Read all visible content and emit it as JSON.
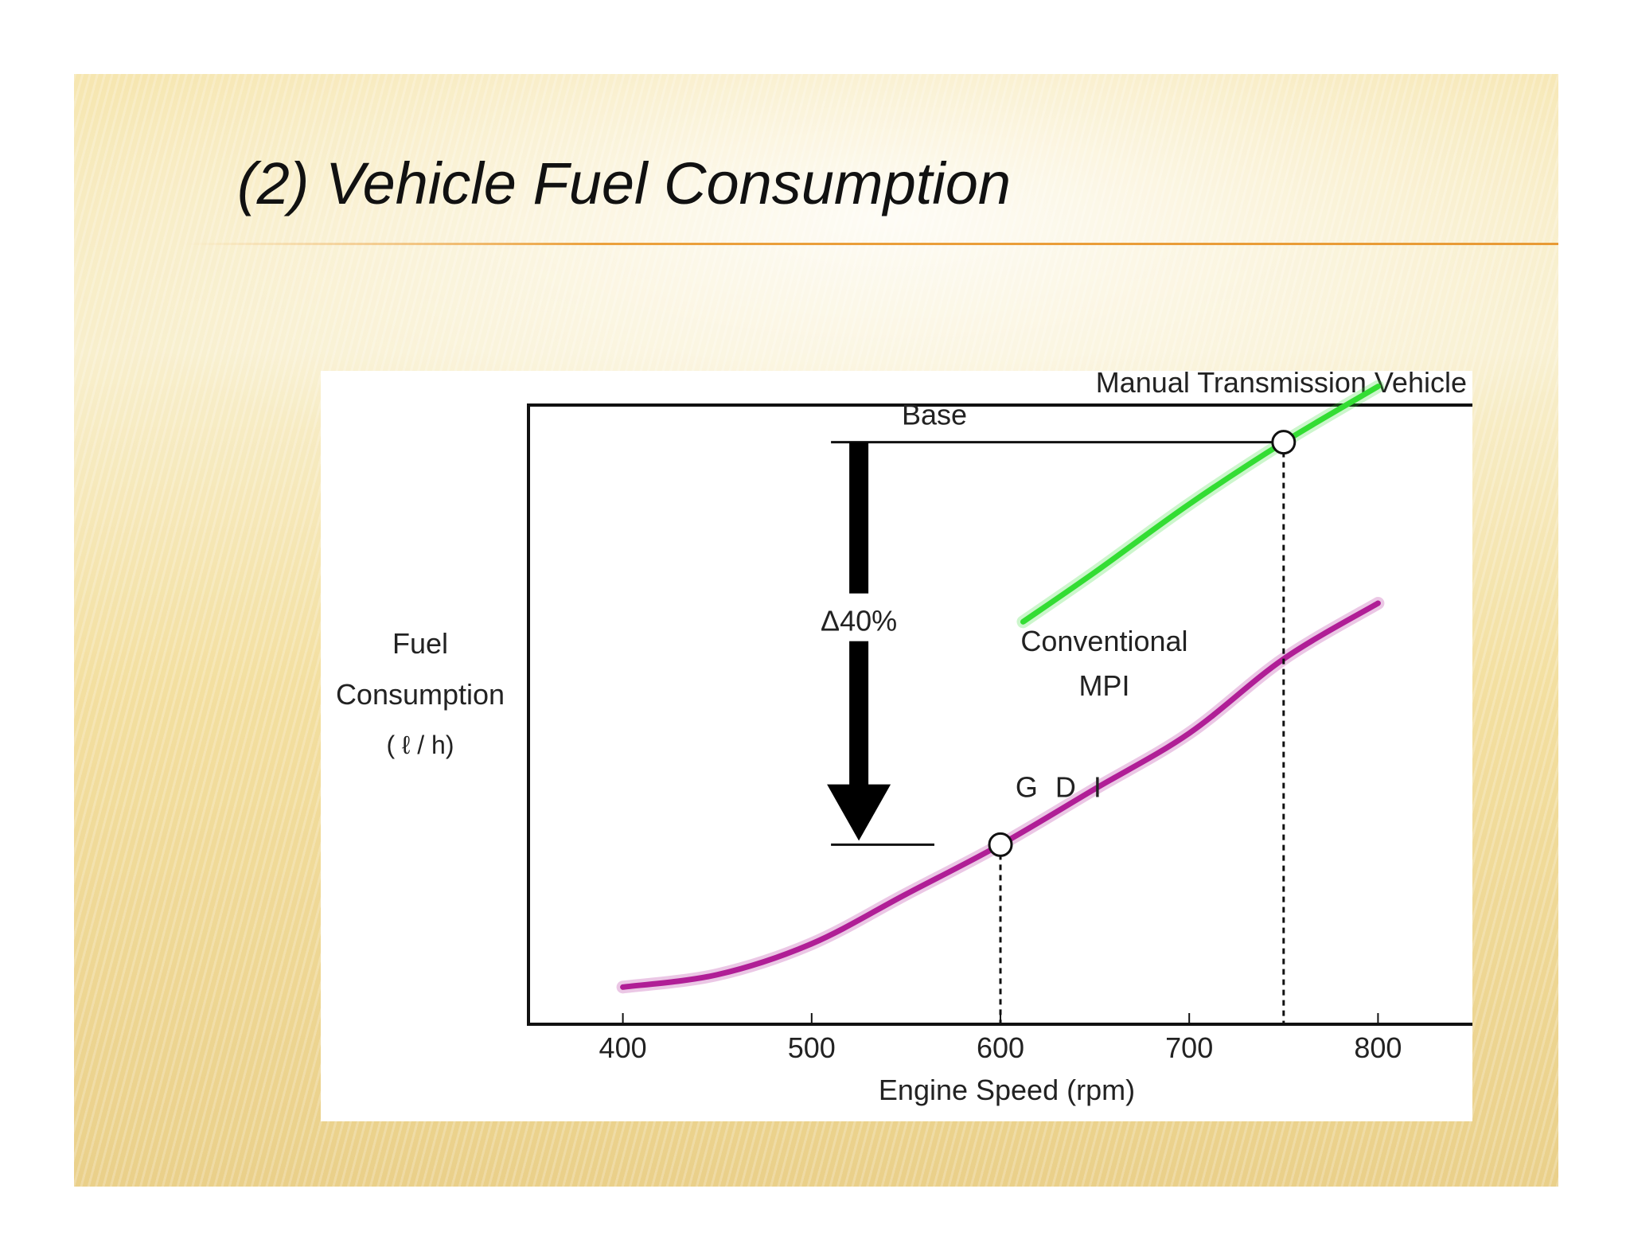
{
  "slide": {
    "title": "(2) Vehicle Fuel Consumption"
  },
  "chart_data": {
    "type": "line",
    "title": "Manual Transmission Vehicle",
    "xlabel": "Engine Speed (rpm)",
    "ylabel_lines": [
      "Fuel",
      "Consumption",
      "( ℓ / h)"
    ],
    "xlim": [
      350,
      850
    ],
    "x_ticks": [
      400,
      500,
      600,
      700,
      800
    ],
    "grid": false,
    "series": [
      {
        "name": "Conventional MPI",
        "label_lines": [
          "Conventional",
          "MPI"
        ],
        "color": "#33dd33",
        "x": [
          612,
          650,
          700,
          750,
          800
        ],
        "y": [
          0.65,
          0.73,
          0.84,
          0.94,
          1.03
        ]
      },
      {
        "name": "G D I",
        "label_lines": [
          "G D I"
        ],
        "color": "#b01e96",
        "x": [
          400,
          450,
          500,
          550,
          600,
          650,
          700,
          750,
          800
        ],
        "y": [
          0.06,
          0.08,
          0.13,
          0.21,
          0.29,
          0.38,
          0.47,
          0.59,
          0.68
        ]
      }
    ],
    "annotations": {
      "base_label": "Base",
      "base_point": {
        "x": 750,
        "y": 0.94
      },
      "gdi_point": {
        "x": 600,
        "y": 0.29
      },
      "reduction_label": "Δ40%"
    }
  }
}
